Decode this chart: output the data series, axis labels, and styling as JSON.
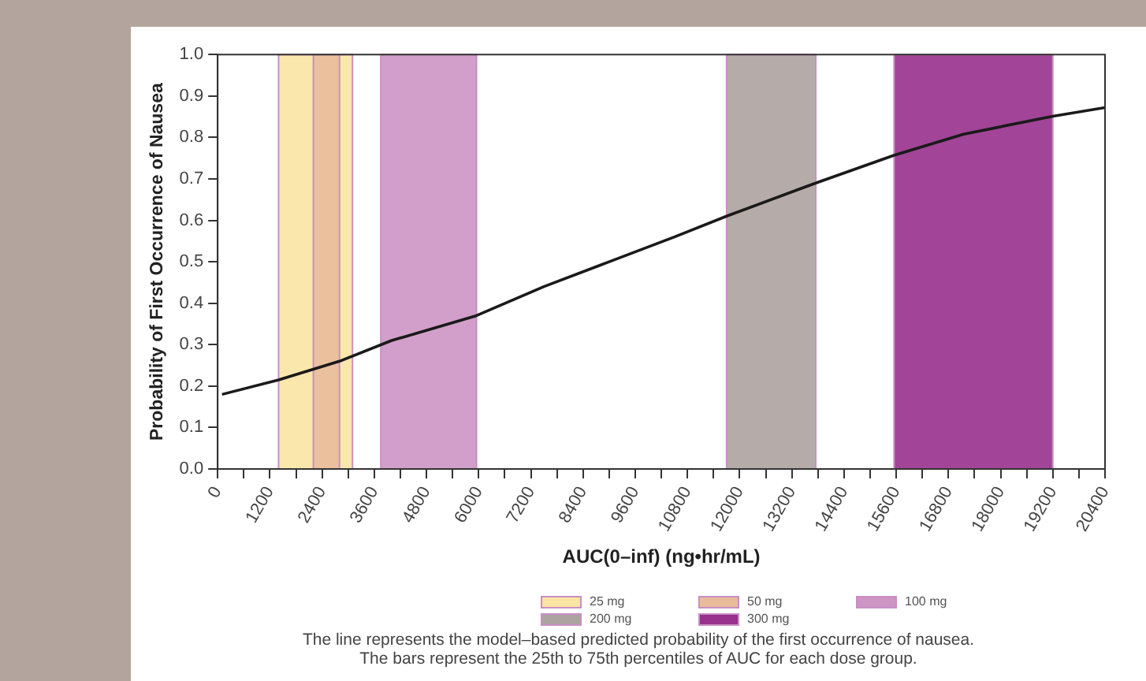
{
  "chart_data": {
    "type": "line",
    "xlabel": "AUC(0–inf) (ng•hr/mL)",
    "ylabel": "Probability of First Occurrence of Nausea",
    "x": [
      100,
      1400,
      2800,
      4000,
      5950,
      7500,
      9000,
      10500,
      11700,
      13750,
      15550,
      17150,
      19200,
      20400
    ],
    "series": [
      {
        "color": "#1a1a1a",
        "values": [
          0.18,
          0.215,
          0.26,
          0.31,
          0.37,
          0.44,
          0.5,
          0.56,
          0.61,
          0.69,
          0.757,
          0.808,
          0.851,
          0.872
        ]
      }
    ],
    "xlim": [
      0,
      20400
    ],
    "xticks": [
      0,
      {
        "value": 600,
        "label": null
      },
      1200,
      {
        "value": 1800,
        "label": null
      },
      2400,
      {
        "value": 3000,
        "label": null
      },
      3600,
      {
        "value": 4200,
        "label": null
      },
      4800,
      {
        "value": 5400,
        "label": null
      },
      6000,
      {
        "value": 6600,
        "label": null
      },
      7200,
      {
        "value": 7800,
        "label": null
      },
      8400,
      {
        "value": 9000,
        "label": null
      },
      9600,
      {
        "value": 10200,
        "label": null
      },
      10800,
      {
        "value": 11400,
        "label": null
      },
      12000,
      {
        "value": 12600,
        "label": null
      },
      13200,
      {
        "value": 13800,
        "label": null
      },
      14400,
      {
        "value": 15000,
        "label": null
      },
      15600,
      {
        "value": 16200,
        "label": null
      },
      16800,
      {
        "value": 17400,
        "label": null
      },
      18000,
      {
        "value": 18600,
        "label": null
      },
      19200,
      {
        "value": 19800,
        "label": null
      },
      20400
    ],
    "ylim": [
      0,
      1
    ],
    "yticks": [
      {
        "value": 0,
        "label": "0.0"
      },
      0.1,
      0.2,
      0.3,
      0.4,
      0.5,
      0.6,
      0.7,
      0.8,
      0.9,
      {
        "value": 1,
        "label": "1.0"
      }
    ],
    "bands": [
      {
        "axis": "x",
        "from": 1400,
        "to": 3100,
        "label": "25 mg",
        "color": "#f9e4a3"
      },
      {
        "axis": "x",
        "from": 2200,
        "to": 2800,
        "label": "50 mg",
        "color": "#e8bc9a"
      },
      {
        "axis": "x",
        "from": 3750,
        "to": 5950,
        "label": "100 mg",
        "color": "#cc95c3"
      },
      {
        "axis": "x",
        "from": 11700,
        "to": 13750,
        "label": "200 mg",
        "color": "#ada3a1"
      },
      {
        "axis": "x",
        "from": 15550,
        "to": 19200,
        "label": "300 mg",
        "color": "#98308d"
      }
    ],
    "legend": "bottom",
    "grid": false,
    "annotations": [
      "The line represents the model–based predicted probability of the first occurrence of nausea.",
      "The bars represent the 25th to 75th percentiles of AUC for each dose group."
    ]
  }
}
